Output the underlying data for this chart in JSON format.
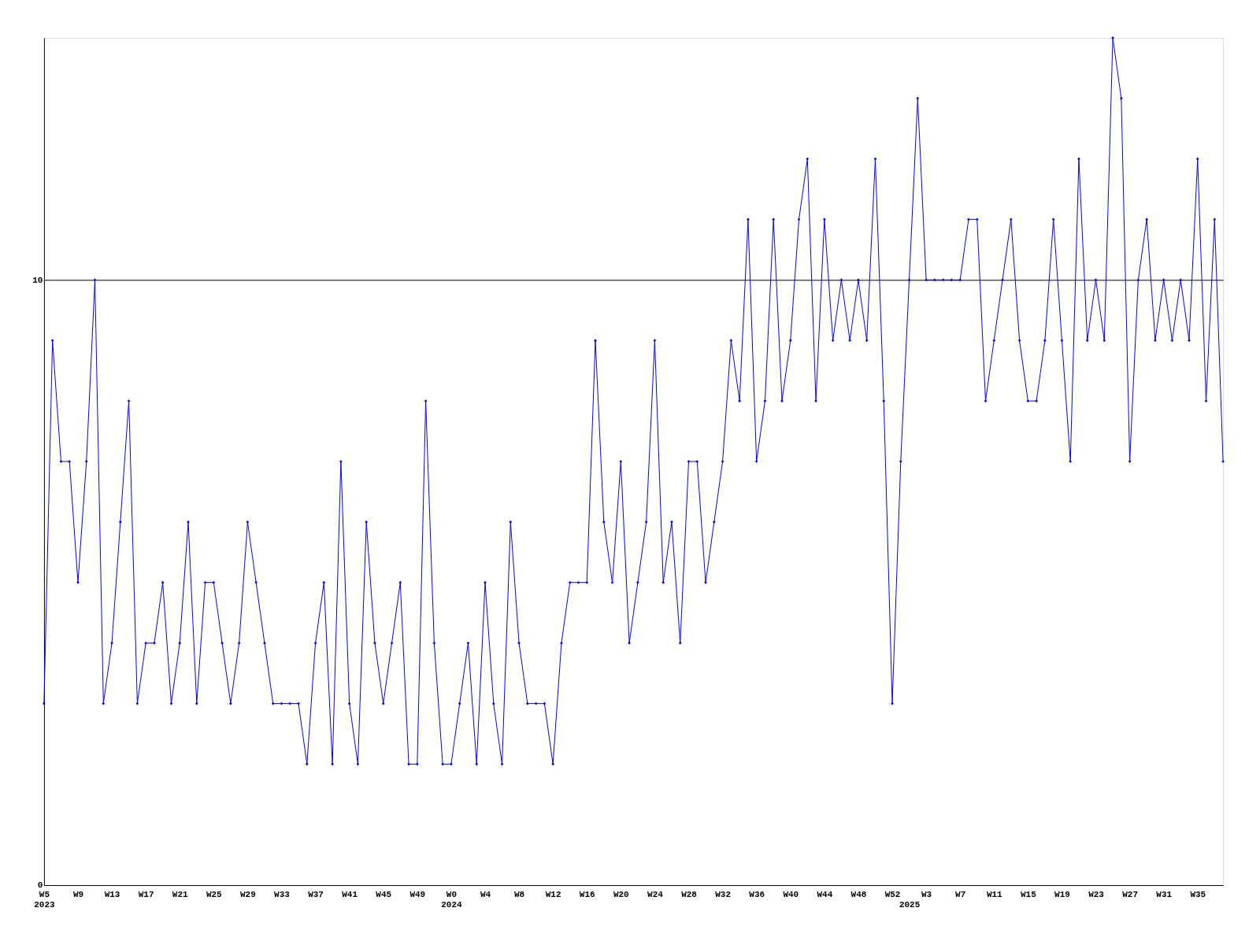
{
  "chart_data": {
    "type": "line",
    "categories": [
      "W5\n2023",
      null,
      null,
      null,
      "W9",
      null,
      null,
      null,
      "W13",
      null,
      null,
      null,
      "W17",
      null,
      null,
      null,
      "W21",
      null,
      null,
      null,
      "W25",
      null,
      null,
      null,
      "W29",
      null,
      null,
      null,
      "W33",
      null,
      null,
      null,
      "W37",
      null,
      null,
      null,
      "W41",
      null,
      null,
      null,
      "W45",
      null,
      null,
      null,
      "W49",
      null,
      null,
      null,
      "W0\n2024",
      null,
      null,
      null,
      "W4",
      null,
      null,
      null,
      "W8",
      null,
      null,
      null,
      "W12",
      null,
      null,
      null,
      "W16",
      null,
      null,
      null,
      "W20",
      null,
      null,
      null,
      "W24",
      null,
      null,
      null,
      "W28",
      null,
      null,
      null,
      "W32",
      null,
      null,
      null,
      "W36",
      null,
      null,
      null,
      "W40",
      null,
      null,
      null,
      "W44",
      null,
      null,
      null,
      "W48",
      null,
      null,
      null,
      "W52",
      null,
      "\n2025",
      null,
      "W3",
      null,
      null,
      null,
      "W7",
      null,
      null,
      null,
      "W11",
      null,
      null,
      null,
      "W15",
      null,
      null,
      null,
      "W19",
      null,
      null,
      null,
      "W23",
      null,
      null,
      null,
      "W27",
      null,
      null,
      null,
      "W31",
      null,
      null,
      null,
      "W35",
      null,
      null,
      null
    ],
    "series": [
      {
        "color": "#0000ff",
        "values": [
          3,
          9,
          7,
          7,
          5,
          7,
          10,
          3,
          4,
          6,
          8,
          3,
          4,
          4,
          5,
          3,
          4,
          6,
          3,
          5,
          5,
          4,
          3,
          4,
          6,
          5,
          4,
          3,
          3,
          3,
          3,
          2,
          4,
          5,
          2,
          7,
          3,
          2,
          6,
          4,
          3,
          4,
          5,
          2,
          2,
          8,
          4,
          2,
          2,
          3,
          4,
          2,
          5,
          3,
          2,
          6,
          4,
          3,
          3,
          3,
          2,
          4,
          5,
          5,
          5,
          9,
          6,
          5,
          7,
          4,
          5,
          6,
          9,
          5,
          6,
          4,
          7,
          7,
          5,
          6,
          7,
          9,
          8,
          11,
          7,
          8,
          11,
          8,
          9,
          11,
          12,
          8,
          11,
          9,
          10,
          9,
          10,
          9,
          12,
          8,
          3,
          7,
          10,
          13,
          10,
          10,
          10,
          10,
          10,
          11,
          11,
          8,
          9,
          10,
          11,
          9,
          8,
          8,
          9,
          11,
          9,
          7,
          12,
          9,
          10,
          9,
          14,
          13,
          7,
          10,
          11,
          9,
          10,
          9,
          10,
          9,
          12,
          8,
          11,
          7
        ]
      }
    ],
    "ylim": [
      0,
      14
    ],
    "yticks": [
      0,
      10
    ],
    "grid": "y",
    "marker": "diamond",
    "line_style": "solid",
    "legend": false
  }
}
